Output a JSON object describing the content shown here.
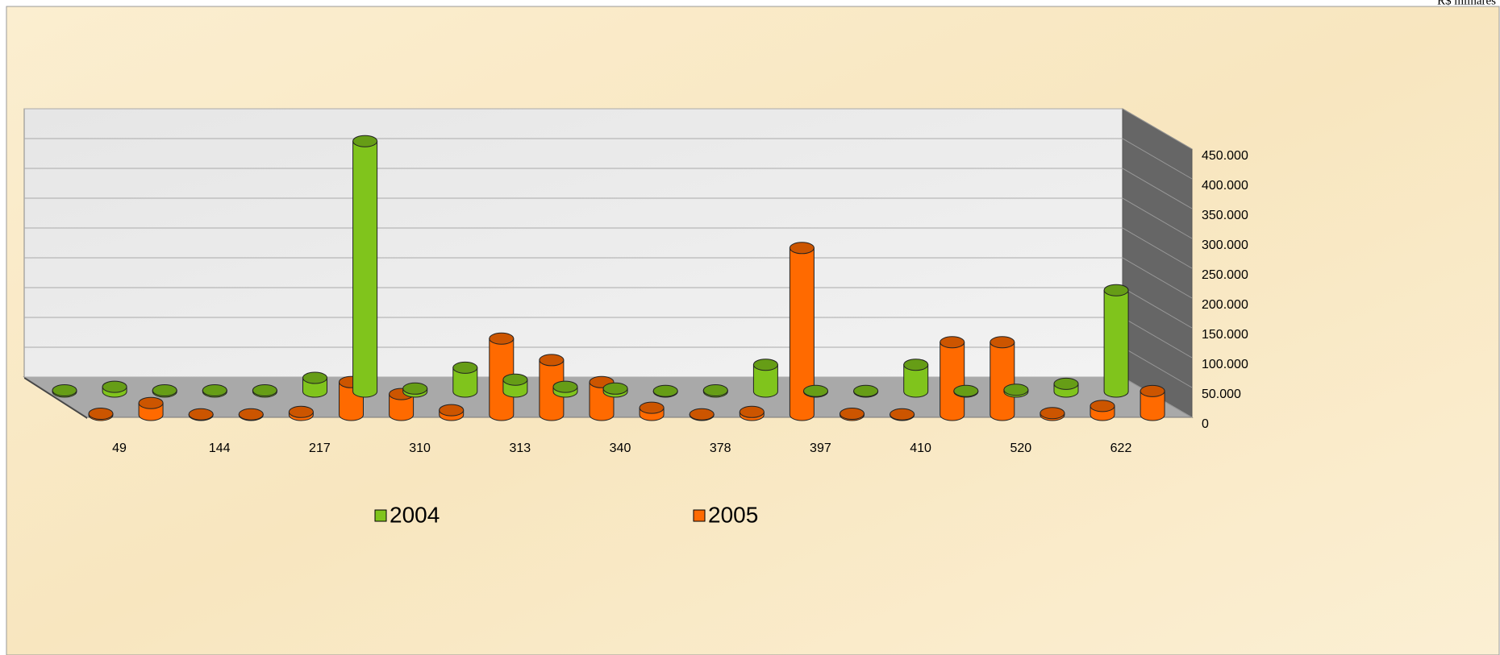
{
  "chart_data": {
    "type": "bar3d",
    "unit_label": "R$ milhares",
    "categories": [
      "49",
      null,
      "144",
      null,
      "217",
      null,
      "310",
      null,
      "313",
      null,
      "340",
      null,
      "378",
      null,
      "397",
      null,
      "410",
      null,
      "520",
      null,
      "622",
      null
    ],
    "series": [
      {
        "name": "2004",
        "color": "#80c41c",
        "values": [
          2000,
          8000,
          2000,
          2000,
          2000,
          23000,
          420000,
          5000,
          40000,
          20000,
          8000,
          5000,
          1000,
          2000,
          45000,
          1000,
          1000,
          45000,
          1000,
          3000,
          13000,
          170000
        ]
      },
      {
        "name": "2005",
        "color": "#ff6a00",
        "values": [
          2000,
          20000,
          1000,
          1000,
          5000,
          55000,
          35000,
          8000,
          128000,
          92000,
          55000,
          12000,
          1000,
          5000,
          280000,
          2000,
          1000,
          122000,
          122000,
          3000,
          15000,
          40000
        ]
      }
    ],
    "ylim": [
      0,
      450000
    ],
    "yticks": [
      0,
      {
        "value": 50000,
        "label": "50.000"
      },
      {
        "value": 100000,
        "label": "100.000"
      },
      {
        "value": 150000,
        "label": "150.000"
      },
      {
        "value": 200000,
        "label": "200.000"
      },
      {
        "value": 250000,
        "label": "250.000"
      },
      {
        "value": 300000,
        "label": "300.000"
      },
      {
        "value": 350000,
        "label": "350.000"
      },
      {
        "value": 400000,
        "label": "400.000"
      },
      {
        "value": 450000,
        "label": "450.000"
      }
    ],
    "grid": true
  }
}
